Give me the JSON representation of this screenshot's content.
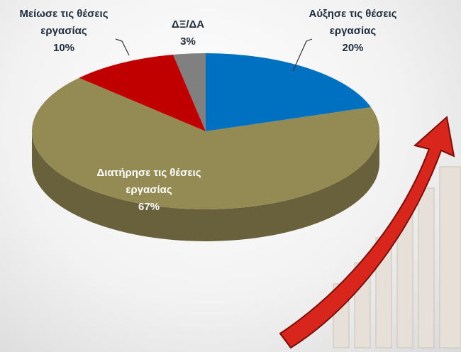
{
  "chart_data": {
    "type": "pie",
    "categories": [
      "Αύξησε τις θέσεις εργασίας",
      "Διατήρησε τις θέσεις εργασίας",
      "Μείωσε τις θέσεις εργασίας",
      "ΔΞ/ΔΑ"
    ],
    "values": [
      20,
      67,
      10,
      3
    ],
    "value_labels": [
      "20%",
      "67%",
      "10%",
      "3%"
    ],
    "colors": [
      "#0070c0",
      "#948a54",
      "#c00000",
      "#808080"
    ]
  }
}
